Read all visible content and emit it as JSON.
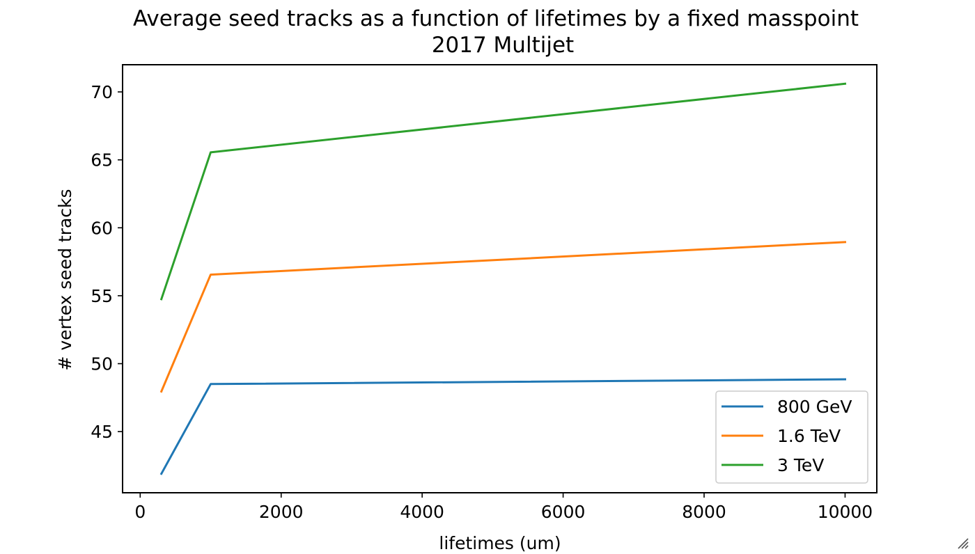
{
  "chart_data": {
    "type": "line",
    "title": "Average seed tracks as a function of lifetimes by a fixed masspoint",
    "subtitle": "2017 Multijet",
    "xlabel": "lifetimes (um)",
    "ylabel": "# vertex seed tracks",
    "x": [
      300,
      1000,
      10000
    ],
    "xlim": [
      -250,
      10450
    ],
    "ylim": [
      40.5,
      72.0
    ],
    "xticks": [
      "0",
      "2000",
      "4000",
      "6000",
      "8000",
      "10000"
    ],
    "yticks": [
      "45",
      "50",
      "55",
      "60",
      "65",
      "70"
    ],
    "grid": false,
    "legend_position": "lower-right",
    "series": [
      {
        "name": "800 GeV",
        "color": "#1f77b4",
        "values": [
          41.9,
          48.5,
          48.85
        ]
      },
      {
        "name": "1.6 TeV",
        "color": "#ff7f0e",
        "values": [
          47.95,
          56.55,
          58.95
        ]
      },
      {
        "name": "3 TeV",
        "color": "#2ca02c",
        "values": [
          54.75,
          65.55,
          70.6
        ]
      }
    ]
  }
}
